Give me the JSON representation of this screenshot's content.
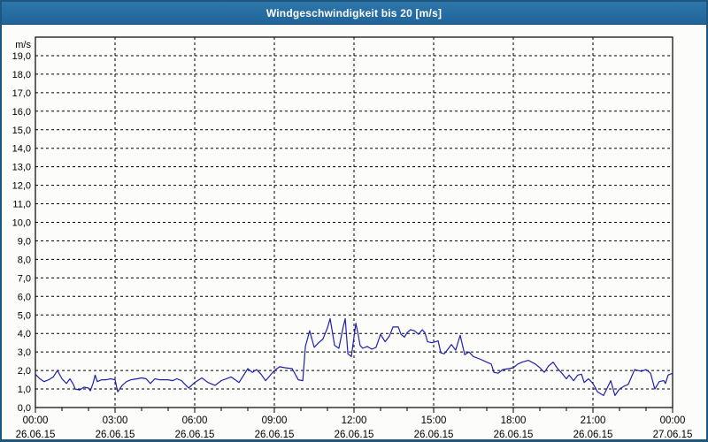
{
  "window": {
    "title": "Windgeschwindigkeit bis 20 [m/s]"
  },
  "colors": {
    "titlebar_bg": "#26709f",
    "window_border": "#1d567f",
    "chart_bg": "#fcfdfa",
    "grid": "#000000",
    "axis": "#000000",
    "series_line": "#1f1fae",
    "title_text": "#ffffff",
    "label_text": "#000000"
  },
  "chart_data": {
    "type": "line",
    "title": "Windgeschwindigkeit bis 20 [m/s]",
    "xlabel": "",
    "ylabel": "m/s",
    "ylim": [
      0,
      20
    ],
    "xlim_hours": [
      0,
      24
    ],
    "grid": "dashed",
    "legend": "none",
    "yticks": [
      "0,0",
      "1,0",
      "2,0",
      "3,0",
      "4,0",
      "5,0",
      "6,0",
      "7,0",
      "8,0",
      "9,0",
      "10,0",
      "11,0",
      "12,0",
      "13,0",
      "14,0",
      "15,0",
      "16,0",
      "17,0",
      "18,0",
      "19,0"
    ],
    "xticks": [
      {
        "hour": 0,
        "time": "00:00",
        "date": "26.06.15"
      },
      {
        "hour": 3,
        "time": "03:00",
        "date": "26.06.15"
      },
      {
        "hour": 6,
        "time": "06:00",
        "date": "26.06.15"
      },
      {
        "hour": 9,
        "time": "09:00",
        "date": "26.06.15"
      },
      {
        "hour": 12,
        "time": "12:00",
        "date": "26.06.15"
      },
      {
        "hour": 15,
        "time": "15:00",
        "date": "26.06.15"
      },
      {
        "hour": 18,
        "time": "18:00",
        "date": "26.06.15"
      },
      {
        "hour": 21,
        "time": "21:00",
        "date": "26.06.15"
      },
      {
        "hour": 24,
        "time": "00:00",
        "date": "27.06.15"
      }
    ],
    "series": [
      {
        "name": "Windgeschwindigkeit",
        "unit": "m/s",
        "color": "#1f1fae",
        "points": [
          [
            0.0,
            1.8
          ],
          [
            0.17,
            1.55
          ],
          [
            0.33,
            1.4
          ],
          [
            0.5,
            1.5
          ],
          [
            0.67,
            1.65
          ],
          [
            0.83,
            2.0
          ],
          [
            1.0,
            1.55
          ],
          [
            1.17,
            1.3
          ],
          [
            1.3,
            1.55
          ],
          [
            1.43,
            1.25
          ],
          [
            1.5,
            1.0
          ],
          [
            1.67,
            0.95
          ],
          [
            1.83,
            1.1
          ],
          [
            2.0,
            1.05
          ],
          [
            2.07,
            0.9
          ],
          [
            2.17,
            1.3
          ],
          [
            2.25,
            1.75
          ],
          [
            2.33,
            1.4
          ],
          [
            2.5,
            1.5
          ],
          [
            2.67,
            1.5
          ],
          [
            2.83,
            1.55
          ],
          [
            3.0,
            1.5
          ],
          [
            3.1,
            0.85
          ],
          [
            3.27,
            1.2
          ],
          [
            3.43,
            1.4
          ],
          [
            3.6,
            1.5
          ],
          [
            3.83,
            1.55
          ],
          [
            4.0,
            1.6
          ],
          [
            4.17,
            1.55
          ],
          [
            4.33,
            1.3
          ],
          [
            4.5,
            1.55
          ],
          [
            4.67,
            1.5
          ],
          [
            4.83,
            1.5
          ],
          [
            5.0,
            1.5
          ],
          [
            5.17,
            1.45
          ],
          [
            5.33,
            1.55
          ],
          [
            5.5,
            1.45
          ],
          [
            5.77,
            1.05
          ],
          [
            6.0,
            1.35
          ],
          [
            6.27,
            1.6
          ],
          [
            6.5,
            1.35
          ],
          [
            6.77,
            1.2
          ],
          [
            7.0,
            1.45
          ],
          [
            7.37,
            1.65
          ],
          [
            7.57,
            1.45
          ],
          [
            7.67,
            1.35
          ],
          [
            8.0,
            2.1
          ],
          [
            8.17,
            1.9
          ],
          [
            8.33,
            2.05
          ],
          [
            8.5,
            1.8
          ],
          [
            8.67,
            1.45
          ],
          [
            9.0,
            2.0
          ],
          [
            9.2,
            2.2
          ],
          [
            9.4,
            2.15
          ],
          [
            9.67,
            2.1
          ],
          [
            9.9,
            1.5
          ],
          [
            10.07,
            1.45
          ],
          [
            10.17,
            3.3
          ],
          [
            10.33,
            4.15
          ],
          [
            10.5,
            3.25
          ],
          [
            10.67,
            3.5
          ],
          [
            10.83,
            3.7
          ],
          [
            11.0,
            4.3
          ],
          [
            11.1,
            4.8
          ],
          [
            11.27,
            3.35
          ],
          [
            11.43,
            3.2
          ],
          [
            11.6,
            4.4
          ],
          [
            11.67,
            4.8
          ],
          [
            11.77,
            2.9
          ],
          [
            11.9,
            2.75
          ],
          [
            12.07,
            4.55
          ],
          [
            12.15,
            4.0
          ],
          [
            12.23,
            3.35
          ],
          [
            12.33,
            3.2
          ],
          [
            12.5,
            3.3
          ],
          [
            12.67,
            3.15
          ],
          [
            12.83,
            3.25
          ],
          [
            13.0,
            3.95
          ],
          [
            13.17,
            3.55
          ],
          [
            13.33,
            3.85
          ],
          [
            13.47,
            4.35
          ],
          [
            13.67,
            4.35
          ],
          [
            13.77,
            3.95
          ],
          [
            13.9,
            3.8
          ],
          [
            14.0,
            4.05
          ],
          [
            14.13,
            4.2
          ],
          [
            14.27,
            4.15
          ],
          [
            14.43,
            3.95
          ],
          [
            14.57,
            4.2
          ],
          [
            14.67,
            4.05
          ],
          [
            14.77,
            3.55
          ],
          [
            14.93,
            3.5
          ],
          [
            15.07,
            3.55
          ],
          [
            15.17,
            3.6
          ],
          [
            15.27,
            2.95
          ],
          [
            15.4,
            2.9
          ],
          [
            15.67,
            3.4
          ],
          [
            15.83,
            3.1
          ],
          [
            16.0,
            3.9
          ],
          [
            16.17,
            2.85
          ],
          [
            16.33,
            3.0
          ],
          [
            16.5,
            2.75
          ],
          [
            16.77,
            2.6
          ],
          [
            17.0,
            2.45
          ],
          [
            17.17,
            2.35
          ],
          [
            17.27,
            1.9
          ],
          [
            17.43,
            1.85
          ],
          [
            17.6,
            2.05
          ],
          [
            17.83,
            2.1
          ],
          [
            18.0,
            2.15
          ],
          [
            18.17,
            2.35
          ],
          [
            18.33,
            2.45
          ],
          [
            18.57,
            2.55
          ],
          [
            18.83,
            2.35
          ],
          [
            19.0,
            2.15
          ],
          [
            19.17,
            1.9
          ],
          [
            19.33,
            2.25
          ],
          [
            19.5,
            2.45
          ],
          [
            19.67,
            2.1
          ],
          [
            19.83,
            1.85
          ],
          [
            20.0,
            1.55
          ],
          [
            20.1,
            1.75
          ],
          [
            20.27,
            1.45
          ],
          [
            20.43,
            1.75
          ],
          [
            20.57,
            1.8
          ],
          [
            20.67,
            1.35
          ],
          [
            20.83,
            1.55
          ],
          [
            21.0,
            1.3
          ],
          [
            21.17,
            0.85
          ],
          [
            21.4,
            0.65
          ],
          [
            21.67,
            1.45
          ],
          [
            21.83,
            0.65
          ],
          [
            22.0,
            1.0
          ],
          [
            22.17,
            1.15
          ],
          [
            22.33,
            1.25
          ],
          [
            22.57,
            2.05
          ],
          [
            22.83,
            1.95
          ],
          [
            23.0,
            2.05
          ],
          [
            23.17,
            1.85
          ],
          [
            23.33,
            1.0
          ],
          [
            23.5,
            1.4
          ],
          [
            23.67,
            1.45
          ],
          [
            23.73,
            1.3
          ],
          [
            23.83,
            1.75
          ],
          [
            24.0,
            1.85
          ]
        ]
      }
    ]
  }
}
